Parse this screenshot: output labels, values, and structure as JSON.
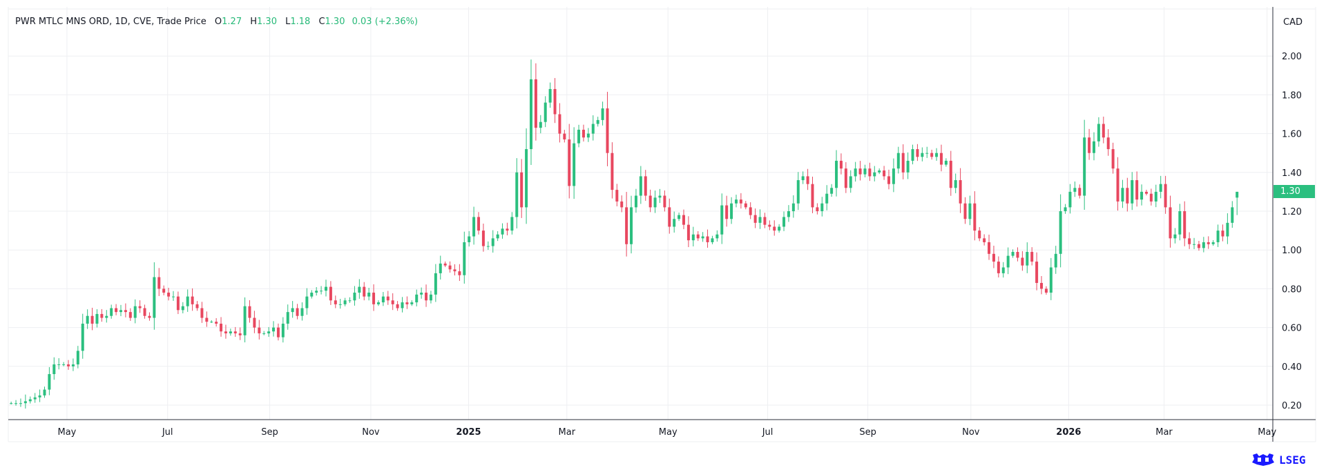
{
  "header": {
    "symbol_info": "PWR MTLC MNS ORD, 1D, CVE, Trade Price",
    "o_label": "O",
    "o": "1.27",
    "h_label": "H",
    "h": "1.30",
    "l_label": "L",
    "l": "1.18",
    "c_label": "C",
    "c": "1.30",
    "change": "0.03 (+2.36%)"
  },
  "currency": "CAD",
  "last_price_label": "1.30",
  "logo_text": "LSEG",
  "colors": {
    "up": "#2bbf7f",
    "down": "#e8475f",
    "grid": "#eeeff2",
    "axis": "#131722",
    "logo": "#1a1aff"
  },
  "chart_data": {
    "type": "candlestick",
    "title": "PWR MTLC MNS ORD, 1D, CVE, Trade Price",
    "ylabel": "CAD",
    "ylim": [
      0.15,
      2.1
    ],
    "y_ticks": [
      "0.20",
      "0.40",
      "0.60",
      "0.80",
      "1.00",
      "1.20",
      "1.40",
      "1.60",
      "1.80",
      "2.00"
    ],
    "x_ticks": [
      {
        "label": "May",
        "at": 11.7
      },
      {
        "label": "Jul",
        "at": 32.8
      },
      {
        "label": "Sep",
        "at": 54.2
      },
      {
        "label": "Nov",
        "at": 75.4
      },
      {
        "label": "2025",
        "at": 95.9,
        "year": true
      },
      {
        "label": "Mar",
        "at": 116.5
      },
      {
        "label": "May",
        "at": 137.7
      },
      {
        "label": "Jul",
        "at": 158.6
      },
      {
        "label": "Sep",
        "at": 179.6
      },
      {
        "label": "Nov",
        "at": 201.2
      },
      {
        "label": "2026",
        "at": 221.7,
        "year": true
      },
      {
        "label": "Mar",
        "at": 241.7
      },
      {
        "label": "May",
        "at": 263.3
      }
    ],
    "x_range": [
      -0.6,
      264.5
    ],
    "grid": true,
    "last_candle": {
      "open": 1.27,
      "high": 1.3,
      "low": 1.18,
      "close": 1.3
    },
    "closes": [
      0.21,
      0.21,
      0.21,
      0.22,
      0.23,
      0.24,
      0.25,
      0.28,
      0.36,
      0.41,
      0.41,
      0.41,
      0.4,
      0.41,
      0.48,
      0.62,
      0.66,
      0.62,
      0.67,
      0.65,
      0.66,
      0.7,
      0.68,
      0.69,
      0.68,
      0.65,
      0.71,
      0.7,
      0.66,
      0.65,
      0.86,
      0.8,
      0.78,
      0.76,
      0.76,
      0.69,
      0.71,
      0.76,
      0.72,
      0.7,
      0.65,
      0.63,
      0.63,
      0.62,
      0.58,
      0.57,
      0.58,
      0.57,
      0.56,
      0.71,
      0.65,
      0.6,
      0.57,
      0.57,
      0.58,
      0.6,
      0.55,
      0.62,
      0.68,
      0.7,
      0.66,
      0.7,
      0.76,
      0.78,
      0.79,
      0.79,
      0.81,
      0.74,
      0.72,
      0.72,
      0.74,
      0.74,
      0.78,
      0.81,
      0.76,
      0.78,
      0.72,
      0.73,
      0.76,
      0.74,
      0.72,
      0.7,
      0.73,
      0.72,
      0.73,
      0.77,
      0.78,
      0.74,
      0.77,
      0.88,
      0.93,
      0.92,
      0.9,
      0.89,
      0.87,
      1.04,
      1.07,
      1.17,
      1.1,
      1.02,
      1.02,
      1.06,
      1.08,
      1.11,
      1.1,
      1.17,
      1.4,
      1.22,
      1.52,
      1.88,
      1.63,
      1.66,
      1.76,
      1.83,
      1.7,
      1.6,
      1.57,
      1.33,
      1.55,
      1.62,
      1.58,
      1.6,
      1.65,
      1.67,
      1.73,
      1.5,
      1.31,
      1.25,
      1.22,
      1.03,
      1.22,
      1.28,
      1.38,
      1.28,
      1.22,
      1.27,
      1.28,
      1.22,
      1.12,
      1.16,
      1.18,
      1.13,
      1.05,
      1.08,
      1.06,
      1.07,
      1.04,
      1.06,
      1.08,
      1.23,
      1.16,
      1.24,
      1.26,
      1.24,
      1.22,
      1.18,
      1.14,
      1.17,
      1.13,
      1.12,
      1.1,
      1.12,
      1.17,
      1.2,
      1.24,
      1.36,
      1.38,
      1.34,
      1.22,
      1.2,
      1.24,
      1.29,
      1.32,
      1.46,
      1.42,
      1.32,
      1.38,
      1.42,
      1.39,
      1.42,
      1.38,
      1.4,
      1.41,
      1.38,
      1.34,
      1.42,
      1.5,
      1.4,
      1.46,
      1.52,
      1.48,
      1.5,
      1.5,
      1.48,
      1.5,
      1.44,
      1.46,
      1.32,
      1.36,
      1.24,
      1.16,
      1.24,
      1.1,
      1.06,
      1.04,
      0.98,
      0.94,
      0.88,
      0.91,
      0.97,
      0.99,
      0.96,
      0.92,
      0.99,
      0.94,
      0.83,
      0.8,
      0.78,
      0.91,
      0.98,
      1.2,
      1.22,
      1.3,
      1.32,
      1.28,
      1.58,
      1.5,
      1.56,
      1.65,
      1.58,
      1.52,
      1.42,
      1.25,
      1.32,
      1.24,
      1.36,
      1.26,
      1.3,
      1.29,
      1.25,
      1.3,
      1.34,
      1.22,
      1.06,
      1.08,
      1.2,
      1.06,
      1.03,
      1.03,
      1.01,
      1.04,
      1.03,
      1.04,
      1.1,
      1.07,
      1.14,
      1.22,
      1.3
    ]
  }
}
